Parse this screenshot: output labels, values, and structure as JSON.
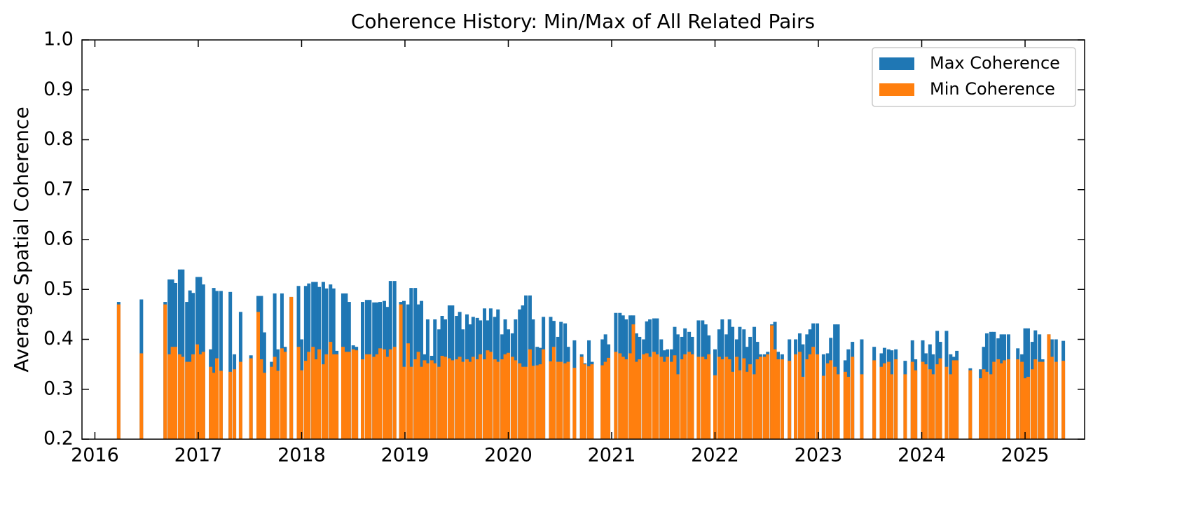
{
  "chart_data": {
    "type": "bar",
    "title": "Coherence History: Min/Max of All Related Pairs",
    "y_label": "Average Spatial Coherence",
    "legend": "upper right",
    "x": [
      2016.23,
      2016.45,
      2016.68,
      2016.72,
      2016.75,
      2016.78,
      2016.82,
      2016.85,
      2016.89,
      2016.92,
      2016.95,
      2016.99,
      2017.02,
      2017.05,
      2017.12,
      2017.15,
      2017.18,
      2017.22,
      2017.31,
      2017.35,
      2017.41,
      2017.51,
      2017.58,
      2017.61,
      2017.64,
      2017.71,
      2017.74,
      2017.77,
      2017.81,
      2017.84,
      2017.9,
      2017.97,
      2018.0,
      2018.04,
      2018.07,
      2018.11,
      2018.14,
      2018.17,
      2018.21,
      2018.24,
      2018.28,
      2018.31,
      2018.34,
      2018.4,
      2018.43,
      2018.46,
      2018.5,
      2018.53,
      2018.59,
      2018.63,
      2018.66,
      2018.7,
      2018.73,
      2018.76,
      2018.8,
      2018.83,
      2018.86,
      2018.9,
      2018.96,
      2018.99,
      2019.03,
      2019.06,
      2019.1,
      2019.13,
      2019.16,
      2019.19,
      2019.22,
      2019.26,
      2019.29,
      2019.33,
      2019.36,
      2019.39,
      2019.43,
      2019.46,
      2019.5,
      2019.53,
      2019.56,
      2019.6,
      2019.63,
      2019.66,
      2019.7,
      2019.73,
      2019.77,
      2019.8,
      2019.83,
      2019.87,
      2019.9,
      2019.94,
      2019.97,
      2020.0,
      2020.04,
      2020.07,
      2020.11,
      2020.14,
      2020.17,
      2020.21,
      2020.24,
      2020.28,
      2020.31,
      2020.34,
      2020.41,
      2020.44,
      2020.48,
      2020.51,
      2020.55,
      2020.58,
      2020.64,
      2020.71,
      2020.74,
      2020.78,
      2020.81,
      2020.91,
      2020.94,
      2020.97,
      2021.04,
      2021.08,
      2021.11,
      2021.14,
      2021.18,
      2021.21,
      2021.24,
      2021.27,
      2021.31,
      2021.34,
      2021.37,
      2021.41,
      2021.44,
      2021.48,
      2021.51,
      2021.54,
      2021.58,
      2021.61,
      2021.64,
      2021.68,
      2021.71,
      2021.75,
      2021.78,
      2021.84,
      2021.88,
      2021.91,
      2021.94,
      2022.0,
      2022.04,
      2022.07,
      2022.11,
      2022.14,
      2022.17,
      2022.21,
      2022.24,
      2022.28,
      2022.31,
      2022.34,
      2022.38,
      2022.41,
      2022.44,
      2022.48,
      2022.51,
      2022.55,
      2022.58,
      2022.61,
      2022.65,
      2022.72,
      2022.78,
      2022.82,
      2022.85,
      2022.89,
      2022.92,
      2022.95,
      2022.99,
      2023.05,
      2023.09,
      2023.12,
      2023.16,
      2023.19,
      2023.26,
      2023.29,
      2023.33,
      2023.42,
      2023.54,
      2023.61,
      2023.64,
      2023.68,
      2023.71,
      2023.75,
      2023.84,
      2023.91,
      2023.94,
      2024.01,
      2024.04,
      2024.08,
      2024.11,
      2024.15,
      2024.18,
      2024.24,
      2024.28,
      2024.31,
      2024.34,
      2024.47,
      2024.57,
      2024.6,
      2024.63,
      2024.67,
      2024.7,
      2024.74,
      2024.77,
      2024.8,
      2024.84,
      2024.93,
      2024.97,
      2025.0,
      2025.03,
      2025.07,
      2025.1,
      2025.14,
      2025.17,
      2025.23,
      2025.26,
      2025.3,
      2025.37
    ],
    "series": [
      {
        "name": "Max Coherence",
        "color": "#1f77b4",
        "values": [
          0.475,
          0.48,
          0.475,
          0.52,
          0.52,
          0.513,
          0.54,
          0.54,
          0.475,
          0.498,
          0.493,
          0.525,
          0.525,
          0.51,
          0.38,
          0.503,
          0.497,
          0.497,
          0.495,
          0.37,
          0.455,
          0.368,
          0.487,
          0.487,
          0.414,
          0.355,
          0.492,
          0.38,
          0.492,
          0.385,
          0.485,
          0.507,
          0.4,
          0.507,
          0.512,
          0.515,
          0.515,
          0.505,
          0.515,
          0.502,
          0.51,
          0.502,
          0.377,
          0.492,
          0.492,
          0.475,
          0.388,
          0.385,
          0.475,
          0.479,
          0.479,
          0.474,
          0.474,
          0.475,
          0.477,
          0.465,
          0.517,
          0.517,
          0.475,
          0.477,
          0.47,
          0.503,
          0.503,
          0.47,
          0.477,
          0.37,
          0.44,
          0.367,
          0.44,
          0.42,
          0.447,
          0.44,
          0.468,
          0.468,
          0.447,
          0.455,
          0.42,
          0.45,
          0.43,
          0.445,
          0.443,
          0.438,
          0.462,
          0.438,
          0.462,
          0.445,
          0.46,
          0.41,
          0.44,
          0.42,
          0.412,
          0.44,
          0.46,
          0.468,
          0.488,
          0.488,
          0.44,
          0.385,
          0.383,
          0.445,
          0.445,
          0.437,
          0.405,
          0.435,
          0.432,
          0.385,
          0.398,
          0.37,
          0.352,
          0.398,
          0.355,
          0.4,
          0.41,
          0.39,
          0.453,
          0.453,
          0.448,
          0.44,
          0.448,
          0.448,
          0.412,
          0.405,
          0.4,
          0.436,
          0.44,
          0.442,
          0.442,
          0.4,
          0.378,
          0.38,
          0.38,
          0.425,
          0.41,
          0.405,
          0.422,
          0.415,
          0.405,
          0.438,
          0.438,
          0.43,
          0.408,
          0.38,
          0.42,
          0.44,
          0.41,
          0.44,
          0.425,
          0.4,
          0.425,
          0.42,
          0.385,
          0.405,
          0.425,
          0.395,
          0.37,
          0.37,
          0.375,
          0.43,
          0.435,
          0.375,
          0.37,
          0.4,
          0.4,
          0.412,
          0.39,
          0.41,
          0.42,
          0.432,
          0.432,
          0.37,
          0.372,
          0.403,
          0.43,
          0.43,
          0.358,
          0.38,
          0.395,
          0.4,
          0.385,
          0.372,
          0.383,
          0.38,
          0.378,
          0.38,
          0.357,
          0.398,
          0.36,
          0.398,
          0.372,
          0.39,
          0.37,
          0.417,
          0.395,
          0.417,
          0.37,
          0.365,
          0.377,
          0.342,
          0.34,
          0.385,
          0.412,
          0.415,
          0.415,
          0.402,
          0.41,
          0.41,
          0.41,
          0.382,
          0.37,
          0.422,
          0.422,
          0.395,
          0.418,
          0.41,
          0.36,
          0.41,
          0.4,
          0.4,
          0.397
        ]
      },
      {
        "name": "Min Coherence",
        "color": "#ff7f0e",
        "values": [
          0.47,
          0.372,
          0.47,
          0.37,
          0.385,
          0.385,
          0.37,
          0.365,
          0.355,
          0.355,
          0.37,
          0.39,
          0.37,
          0.375,
          0.345,
          0.333,
          0.362,
          0.337,
          0.335,
          0.34,
          0.355,
          0.362,
          0.455,
          0.36,
          0.333,
          0.345,
          0.365,
          0.337,
          0.382,
          0.375,
          0.485,
          0.385,
          0.338,
          0.357,
          0.375,
          0.385,
          0.36,
          0.38,
          0.35,
          0.37,
          0.395,
          0.37,
          0.37,
          0.385,
          0.375,
          0.375,
          0.38,
          0.378,
          0.36,
          0.37,
          0.37,
          0.365,
          0.37,
          0.382,
          0.38,
          0.365,
          0.38,
          0.385,
          0.47,
          0.345,
          0.392,
          0.345,
          0.36,
          0.375,
          0.345,
          0.358,
          0.352,
          0.358,
          0.352,
          0.345,
          0.367,
          0.365,
          0.362,
          0.358,
          0.36,
          0.365,
          0.355,
          0.36,
          0.355,
          0.365,
          0.36,
          0.37,
          0.36,
          0.378,
          0.375,
          0.36,
          0.355,
          0.36,
          0.37,
          0.373,
          0.365,
          0.358,
          0.352,
          0.345,
          0.345,
          0.38,
          0.347,
          0.348,
          0.35,
          0.38,
          0.356,
          0.385,
          0.355,
          0.355,
          0.352,
          0.355,
          0.343,
          0.365,
          0.35,
          0.346,
          0.35,
          0.348,
          0.355,
          0.363,
          0.375,
          0.372,
          0.365,
          0.36,
          0.372,
          0.43,
          0.355,
          0.36,
          0.37,
          0.372,
          0.365,
          0.375,
          0.37,
          0.365,
          0.355,
          0.365,
          0.355,
          0.368,
          0.33,
          0.36,
          0.37,
          0.375,
          0.37,
          0.365,
          0.365,
          0.36,
          0.37,
          0.328,
          0.365,
          0.36,
          0.365,
          0.36,
          0.335,
          0.365,
          0.338,
          0.362,
          0.335,
          0.35,
          0.33,
          0.36,
          0.365,
          0.365,
          0.37,
          0.428,
          0.38,
          0.36,
          0.36,
          0.357,
          0.37,
          0.375,
          0.325,
          0.36,
          0.37,
          0.385,
          0.37,
          0.327,
          0.352,
          0.358,
          0.345,
          0.33,
          0.335,
          0.325,
          0.365,
          0.33,
          0.358,
          0.345,
          0.352,
          0.355,
          0.33,
          0.36,
          0.33,
          0.355,
          0.338,
          0.355,
          0.35,
          0.34,
          0.33,
          0.35,
          0.362,
          0.345,
          0.33,
          0.358,
          0.358,
          0.338,
          0.322,
          0.34,
          0.335,
          0.33,
          0.355,
          0.36,
          0.352,
          0.358,
          0.36,
          0.36,
          0.355,
          0.322,
          0.325,
          0.34,
          0.36,
          0.355,
          0.355,
          0.41,
          0.365,
          0.355,
          0.357
        ]
      }
    ],
    "xlim": [
      2015.875,
      2025.576
    ],
    "xticks": [
      2016,
      2017,
      2018,
      2019,
      2020,
      2021,
      2022,
      2023,
      2024,
      2025
    ],
    "ylim": [
      0.2,
      1.0
    ],
    "yticks": [
      0.2,
      0.3,
      0.4,
      0.5,
      0.6,
      0.7,
      0.8,
      0.9,
      {
        "value": 1.0,
        "label": "1.0"
      }
    ]
  }
}
